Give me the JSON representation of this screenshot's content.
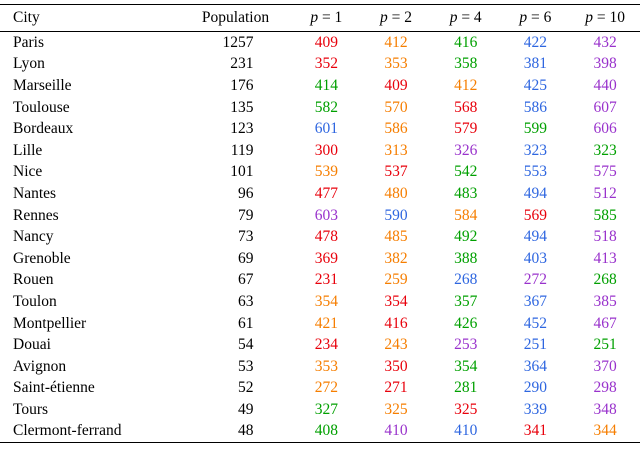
{
  "table": {
    "headers": [
      "City",
      "Population",
      "p = 1",
      "p = 2",
      "p = 4",
      "p = 6",
      "p = 10"
    ],
    "palette": {
      "red": "#e8000b",
      "orange": "#f67e00",
      "green": "#00a000",
      "blue": "#2e66e0",
      "purple": "#9932cc"
    },
    "rows": [
      {
        "city": "Paris",
        "population": "1257",
        "values": [
          {
            "v": "409",
            "c": "red"
          },
          {
            "v": "412",
            "c": "orange"
          },
          {
            "v": "416",
            "c": "green"
          },
          {
            "v": "422",
            "c": "blue"
          },
          {
            "v": "432",
            "c": "purple"
          }
        ]
      },
      {
        "city": "Lyon",
        "population": "231",
        "values": [
          {
            "v": "352",
            "c": "red"
          },
          {
            "v": "353",
            "c": "orange"
          },
          {
            "v": "358",
            "c": "green"
          },
          {
            "v": "381",
            "c": "blue"
          },
          {
            "v": "398",
            "c": "purple"
          }
        ]
      },
      {
        "city": "Marseille",
        "population": "176",
        "values": [
          {
            "v": "414",
            "c": "green"
          },
          {
            "v": "409",
            "c": "red"
          },
          {
            "v": "412",
            "c": "orange"
          },
          {
            "v": "425",
            "c": "blue"
          },
          {
            "v": "440",
            "c": "purple"
          }
        ]
      },
      {
        "city": "Toulouse",
        "population": "135",
        "values": [
          {
            "v": "582",
            "c": "green"
          },
          {
            "v": "570",
            "c": "orange"
          },
          {
            "v": "568",
            "c": "red"
          },
          {
            "v": "586",
            "c": "blue"
          },
          {
            "v": "607",
            "c": "purple"
          }
        ]
      },
      {
        "city": "Bordeaux",
        "population": "123",
        "values": [
          {
            "v": "601",
            "c": "blue"
          },
          {
            "v": "586",
            "c": "orange"
          },
          {
            "v": "579",
            "c": "red"
          },
          {
            "v": "599",
            "c": "green"
          },
          {
            "v": "606",
            "c": "purple"
          }
        ]
      },
      {
        "city": "Lille",
        "population": "119",
        "values": [
          {
            "v": "300",
            "c": "red"
          },
          {
            "v": "313",
            "c": "orange"
          },
          {
            "v": "326",
            "c": "purple"
          },
          {
            "v": "323",
            "c": "blue"
          },
          {
            "v": "323",
            "c": "green"
          }
        ]
      },
      {
        "city": "Nice",
        "population": "101",
        "values": [
          {
            "v": "539",
            "c": "orange"
          },
          {
            "v": "537",
            "c": "red"
          },
          {
            "v": "542",
            "c": "green"
          },
          {
            "v": "553",
            "c": "blue"
          },
          {
            "v": "575",
            "c": "purple"
          }
        ]
      },
      {
        "city": "Nantes",
        "population": "96",
        "values": [
          {
            "v": "477",
            "c": "red"
          },
          {
            "v": "480",
            "c": "orange"
          },
          {
            "v": "483",
            "c": "green"
          },
          {
            "v": "494",
            "c": "blue"
          },
          {
            "v": "512",
            "c": "purple"
          }
        ]
      },
      {
        "city": "Rennes",
        "population": "79",
        "values": [
          {
            "v": "603",
            "c": "purple"
          },
          {
            "v": "590",
            "c": "blue"
          },
          {
            "v": "584",
            "c": "orange"
          },
          {
            "v": "569",
            "c": "red"
          },
          {
            "v": "585",
            "c": "green"
          }
        ]
      },
      {
        "city": "Nancy",
        "population": "73",
        "values": [
          {
            "v": "478",
            "c": "red"
          },
          {
            "v": "485",
            "c": "orange"
          },
          {
            "v": "492",
            "c": "green"
          },
          {
            "v": "494",
            "c": "blue"
          },
          {
            "v": "518",
            "c": "purple"
          }
        ]
      },
      {
        "city": "Grenoble",
        "population": "69",
        "values": [
          {
            "v": "369",
            "c": "red"
          },
          {
            "v": "382",
            "c": "orange"
          },
          {
            "v": "388",
            "c": "green"
          },
          {
            "v": "403",
            "c": "blue"
          },
          {
            "v": "413",
            "c": "purple"
          }
        ]
      },
      {
        "city": "Rouen",
        "population": "67",
        "values": [
          {
            "v": "231",
            "c": "red"
          },
          {
            "v": "259",
            "c": "orange"
          },
          {
            "v": "268",
            "c": "blue"
          },
          {
            "v": "272",
            "c": "purple"
          },
          {
            "v": "268",
            "c": "green"
          }
        ]
      },
      {
        "city": "Toulon",
        "population": "63",
        "values": [
          {
            "v": "354",
            "c": "orange"
          },
          {
            "v": "354",
            "c": "red"
          },
          {
            "v": "357",
            "c": "green"
          },
          {
            "v": "367",
            "c": "blue"
          },
          {
            "v": "385",
            "c": "purple"
          }
        ]
      },
      {
        "city": "Montpellier",
        "population": "61",
        "values": [
          {
            "v": "421",
            "c": "orange"
          },
          {
            "v": "416",
            "c": "red"
          },
          {
            "v": "426",
            "c": "green"
          },
          {
            "v": "452",
            "c": "blue"
          },
          {
            "v": "467",
            "c": "purple"
          }
        ]
      },
      {
        "city": "Douai",
        "population": "54",
        "values": [
          {
            "v": "234",
            "c": "red"
          },
          {
            "v": "243",
            "c": "orange"
          },
          {
            "v": "253",
            "c": "purple"
          },
          {
            "v": "251",
            "c": "blue"
          },
          {
            "v": "251",
            "c": "green"
          }
        ]
      },
      {
        "city": "Avignon",
        "population": "53",
        "values": [
          {
            "v": "353",
            "c": "orange"
          },
          {
            "v": "350",
            "c": "red"
          },
          {
            "v": "354",
            "c": "green"
          },
          {
            "v": "364",
            "c": "blue"
          },
          {
            "v": "370",
            "c": "purple"
          }
        ]
      },
      {
        "city": "Saint-étienne",
        "population": "52",
        "values": [
          {
            "v": "272",
            "c": "orange"
          },
          {
            "v": "271",
            "c": "red"
          },
          {
            "v": "281",
            "c": "green"
          },
          {
            "v": "290",
            "c": "blue"
          },
          {
            "v": "298",
            "c": "purple"
          }
        ]
      },
      {
        "city": "Tours",
        "population": "49",
        "values": [
          {
            "v": "327",
            "c": "green"
          },
          {
            "v": "325",
            "c": "orange"
          },
          {
            "v": "325",
            "c": "red"
          },
          {
            "v": "339",
            "c": "blue"
          },
          {
            "v": "348",
            "c": "purple"
          }
        ]
      },
      {
        "city": "Clermont-ferrand",
        "population": "48",
        "values": [
          {
            "v": "408",
            "c": "green"
          },
          {
            "v": "410",
            "c": "purple"
          },
          {
            "v": "410",
            "c": "blue"
          },
          {
            "v": "341",
            "c": "red"
          },
          {
            "v": "344",
            "c": "orange"
          }
        ]
      }
    ]
  }
}
